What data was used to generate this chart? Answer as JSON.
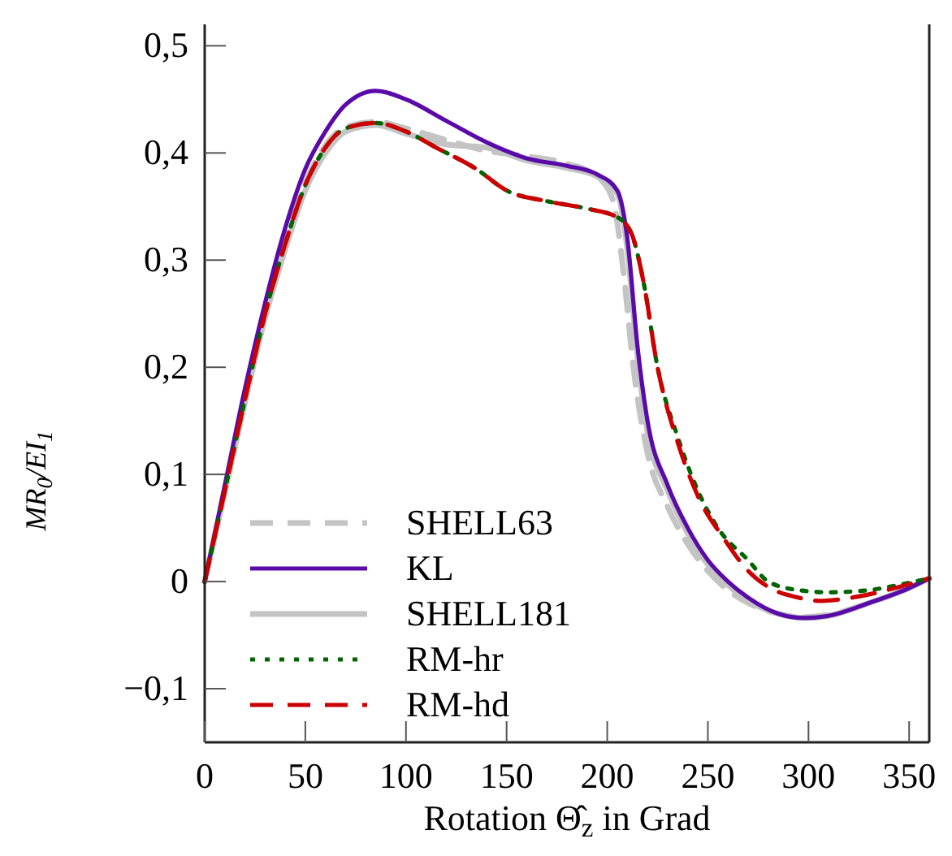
{
  "chart_data": {
    "type": "line",
    "xlabel": "Rotation Θ̂$_{z}$ in Grad",
    "ylabel": "MR$_{0}$/EI$_{1}$",
    "xlim": [
      0,
      360
    ],
    "ylim": [
      -0.15,
      0.52
    ],
    "xticks": [
      0,
      50,
      100,
      150,
      200,
      250,
      300,
      350
    ],
    "yticks": [
      {
        "value": -0.1,
        "label": "−0,1"
      },
      0,
      {
        "value": 0.1,
        "label": "0,1"
      },
      {
        "value": 0.2,
        "label": "0,2"
      },
      {
        "value": 0.3,
        "label": "0,3"
      },
      {
        "value": 0.4,
        "label": "0,4"
      },
      {
        "value": 0.5,
        "label": "0,5"
      }
    ],
    "legend": "bottom left",
    "grid": false,
    "series": [
      {
        "name": "SHELL63",
        "color": "#c4c4c4",
        "line_style": "dashed",
        "x": [
          0,
          10,
          20,
          30,
          40,
          50,
          60,
          70,
          85,
          100,
          120,
          140,
          160,
          180,
          195,
          203,
          208,
          213,
          220,
          230,
          240,
          250,
          260,
          270,
          285,
          298,
          310,
          330,
          350,
          360
        ],
        "values": [
          0,
          0.086,
          0.172,
          0.252,
          0.318,
          0.372,
          0.407,
          0.424,
          0.429,
          0.423,
          0.412,
          0.402,
          0.397,
          0.39,
          0.378,
          0.355,
          0.29,
          0.2,
          0.12,
          0.07,
          0.035,
          0.01,
          -0.008,
          -0.02,
          -0.03,
          -0.033,
          -0.031,
          -0.02,
          -0.006,
          0.003
        ]
      },
      {
        "name": "KL",
        "color": "#5a0aa8",
        "line_style": "solid",
        "x": [
          0,
          10,
          20,
          30,
          40,
          50,
          60,
          70,
          85,
          100,
          120,
          140,
          160,
          180,
          195,
          205,
          210,
          215,
          220,
          230,
          240,
          250,
          260,
          270,
          285,
          298,
          310,
          330,
          350,
          360
        ],
        "values": [
          0,
          0.09,
          0.18,
          0.26,
          0.33,
          0.385,
          0.42,
          0.445,
          0.458,
          0.45,
          0.43,
          0.41,
          0.395,
          0.388,
          0.38,
          0.365,
          0.32,
          0.22,
          0.15,
          0.09,
          0.05,
          0.02,
          0.0,
          -0.015,
          -0.03,
          -0.034,
          -0.032,
          -0.02,
          -0.006,
          0.003
        ]
      },
      {
        "name": "SHELL181",
        "color": "#c4c4c4",
        "line_style": "solid",
        "x": [
          0,
          10,
          20,
          30,
          40,
          50,
          60,
          70,
          85,
          100,
          120,
          140,
          160,
          180,
          195,
          205,
          210,
          215,
          220,
          230,
          240,
          250,
          260,
          270,
          285,
          298,
          310,
          330,
          350,
          360
        ],
        "values": [
          0,
          0.083,
          0.167,
          0.246,
          0.31,
          0.365,
          0.4,
          0.42,
          0.426,
          0.418,
          0.408,
          0.405,
          0.393,
          0.386,
          0.378,
          0.362,
          0.31,
          0.21,
          0.14,
          0.085,
          0.045,
          0.016,
          -0.003,
          -0.018,
          -0.03,
          -0.034,
          -0.032,
          -0.02,
          -0.006,
          0.003
        ]
      },
      {
        "name": "RM-hr",
        "color": "#006400",
        "line_style": "dotted",
        "x": [
          0,
          10,
          20,
          30,
          40,
          50,
          60,
          70,
          85,
          100,
          115,
          135,
          150,
          170,
          190,
          205,
          212,
          218,
          225,
          235,
          245,
          255,
          270,
          280,
          295,
          310,
          330,
          345,
          360
        ],
        "values": [
          0,
          0.085,
          0.17,
          0.25,
          0.315,
          0.37,
          0.405,
          0.423,
          0.428,
          0.42,
          0.405,
          0.385,
          0.365,
          0.355,
          0.348,
          0.34,
          0.325,
          0.28,
          0.2,
          0.135,
          0.085,
          0.05,
          0.02,
          0.0,
          -0.008,
          -0.01,
          -0.008,
          -0.003,
          0.003
        ]
      },
      {
        "name": "RM-hd",
        "color": "#cc0000",
        "line_style": "dashed",
        "x": [
          0,
          10,
          20,
          30,
          40,
          50,
          60,
          70,
          85,
          100,
          115,
          135,
          150,
          170,
          190,
          205,
          212,
          218,
          225,
          235,
          245,
          258,
          270,
          280,
          295,
          305,
          330,
          345,
          360
        ],
        "values": [
          0,
          0.085,
          0.17,
          0.25,
          0.315,
          0.37,
          0.405,
          0.423,
          0.428,
          0.42,
          0.405,
          0.385,
          0.365,
          0.355,
          0.348,
          0.34,
          0.325,
          0.28,
          0.2,
          0.13,
          0.08,
          0.04,
          0.01,
          -0.005,
          -0.015,
          -0.018,
          -0.012,
          -0.005,
          0.003
        ]
      }
    ]
  }
}
